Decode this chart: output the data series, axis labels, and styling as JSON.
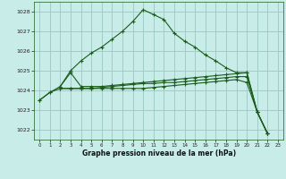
{
  "title": "Graphe pression niveau de la mer (hPa)",
  "background_color": "#c8ece8",
  "grid_color": "#a0ccc8",
  "line_color": "#1a5c1a",
  "xlim": [
    -0.5,
    23.5
  ],
  "ylim": [
    1021.5,
    1028.5
  ],
  "yticks": [
    1022,
    1023,
    1024,
    1025,
    1026,
    1027,
    1028
  ],
  "xticks": [
    0,
    1,
    2,
    3,
    4,
    5,
    6,
    7,
    8,
    9,
    10,
    11,
    12,
    13,
    14,
    15,
    16,
    17,
    18,
    19,
    20,
    21,
    22,
    23
  ],
  "series_main": {
    "x": [
      0,
      1,
      2,
      3,
      4,
      5,
      6,
      7,
      8,
      9,
      10,
      11,
      12,
      13,
      14,
      15,
      16,
      17,
      18,
      19,
      20,
      21,
      22
    ],
    "y": [
      1023.5,
      1023.9,
      1024.2,
      1025.0,
      1025.5,
      1025.9,
      1026.2,
      1026.6,
      1027.0,
      1027.5,
      1028.1,
      1027.85,
      1027.6,
      1026.9,
      1026.5,
      1026.2,
      1025.8,
      1025.5,
      1025.15,
      1024.9,
      1024.9,
      1022.9,
      1021.8
    ]
  },
  "series_flat1": {
    "x": [
      2,
      3,
      4,
      5,
      6,
      7,
      8,
      9,
      10,
      11,
      12,
      13,
      14,
      15,
      16,
      17,
      18,
      19,
      20,
      21,
      22
    ],
    "y": [
      1024.2,
      1024.9,
      1024.2,
      1024.2,
      1024.2,
      1024.25,
      1024.3,
      1024.35,
      1024.4,
      1024.45,
      1024.5,
      1024.55,
      1024.6,
      1024.65,
      1024.7,
      1024.75,
      1024.8,
      1024.85,
      1024.9,
      1022.9,
      1021.8
    ]
  },
  "series_flat2": {
    "x": [
      2,
      3,
      4,
      5,
      6,
      7,
      8,
      9,
      10,
      11,
      12,
      13,
      14,
      15,
      16,
      17,
      18,
      19,
      20,
      21,
      22
    ],
    "y": [
      1024.1,
      1024.1,
      1024.1,
      1024.1,
      1024.15,
      1024.2,
      1024.25,
      1024.3,
      1024.35,
      1024.35,
      1024.4,
      1024.4,
      1024.45,
      1024.5,
      1024.55,
      1024.6,
      1024.65,
      1024.7,
      1024.7,
      1022.9,
      1021.8
    ]
  },
  "series_diag": {
    "x": [
      0,
      1,
      2,
      3,
      4,
      5,
      6,
      7,
      8,
      9,
      10,
      11,
      12,
      13,
      14,
      15,
      16,
      17,
      18,
      19,
      20,
      21,
      22
    ],
    "y": [
      1023.5,
      1023.9,
      1024.1,
      1024.1,
      1024.1,
      1024.1,
      1024.1,
      1024.1,
      1024.1,
      1024.1,
      1024.1,
      1024.15,
      1024.2,
      1024.25,
      1024.3,
      1024.35,
      1024.4,
      1024.45,
      1024.5,
      1024.55,
      1024.4,
      1022.9,
      1021.8
    ]
  }
}
